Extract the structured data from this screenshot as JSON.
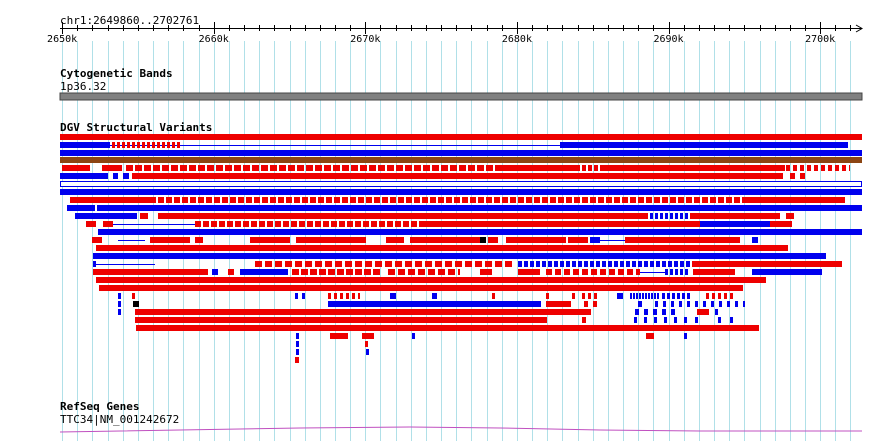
{
  "region": {
    "label": "chr1:2649860..2702761",
    "start": 2649860,
    "end": 2702761
  },
  "ruler": {
    "ticks": [
      {
        "pos": 2650000,
        "label": "2650k"
      },
      {
        "pos": 2660000,
        "label": "2660k"
      },
      {
        "pos": 2670000,
        "label": "2670k"
      },
      {
        "pos": 2680000,
        "label": "2680k"
      },
      {
        "pos": 2690000,
        "label": "2690k"
      },
      {
        "pos": 2700000,
        "label": "2700k"
      }
    ],
    "grid_interval": 1000
  },
  "tracks": {
    "cytoband": {
      "title": "Cytogenetic Bands",
      "band_label": "1p36.32",
      "color": "#808080"
    },
    "dgv": {
      "title": "DGV Structural Variants"
    },
    "refseq": {
      "title": "RefSeq Genes",
      "gene_label": "TTC34|NM_001242672",
      "color": "#c050c0"
    }
  },
  "colors": {
    "loss": "#ee0000",
    "gain": "#0000ee",
    "inversion": "#8b4513",
    "gridline": "#b0e0e8",
    "ruler": "#000000"
  }
}
